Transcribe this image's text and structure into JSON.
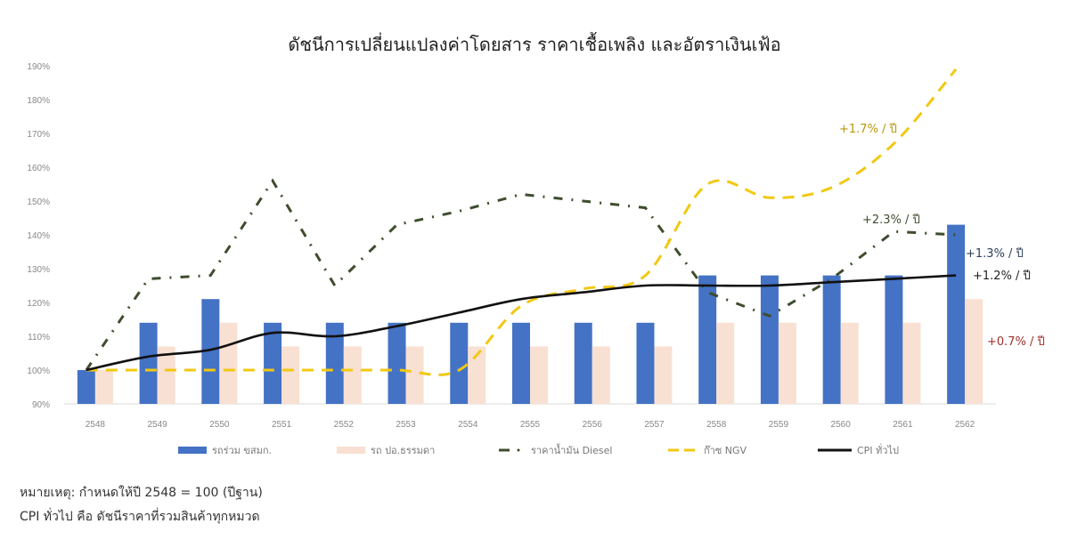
{
  "title": "ดัชนีการเปลี่ยนแปลงค่าโดยสาร ราคาเชื้อเพลิง และอัตราเงินเฟ้อ",
  "notes": {
    "line1": "หมายเหตุ: กำหนดให้ปี 2548 = 100 (ปีฐาน)",
    "line2": "CPI ทั่วไป คือ ดัชนีราคาที่รวมสินค้าทุกหมวด"
  },
  "legend": {
    "bus_bmta": "รถร่วม ขสมก.",
    "bus_regular": "รถ ปอ.ธรรมดา",
    "diesel": "ราคาน้ำมัน Diesel",
    "ngv": "ก๊าซ NGV",
    "cpi": "CPI ทั่วไป"
  },
  "annotations": {
    "ngv": "+1.7% / ปี",
    "diesel": "+2.3% / ปี",
    "bus_bmta": "+1.3% / ปี",
    "cpi": "+1.2% / ปี",
    "bus_regular": "+0.7% / ปี"
  },
  "colors": {
    "bus_bmta": "#4472C4",
    "bus_regular": "#F8E0D2",
    "diesel": "#3E4D2E",
    "ngv": "#F2C811",
    "cpi": "#111111",
    "annotation_red": "#A0302A",
    "annotation_ngv": "#B8960C",
    "axis_text": "#888888"
  },
  "chart_data": {
    "type": "bar",
    "title": "ดัชนีการเปลี่ยนแปลงค่าโดยสาร ราคาเชื้อเพลิง และอัตราเงินเฟ้อ",
    "xlabel": "",
    "ylabel": "",
    "ylim": [
      90,
      190
    ],
    "yticks": [
      "90%",
      "100%",
      "110%",
      "120%",
      "130%",
      "140%",
      "150%",
      "160%",
      "170%",
      "180%",
      "190%"
    ],
    "grid": false,
    "legend_position": "bottom",
    "categories": [
      "2548",
      "2549",
      "2550",
      "2551",
      "2552",
      "2553",
      "2554",
      "2555",
      "2556",
      "2557",
      "2558",
      "2559",
      "2560",
      "2561",
      "2562"
    ],
    "series": [
      {
        "name": "รถร่วม ขสมก.",
        "type": "bar",
        "values": [
          100,
          114,
          121,
          114,
          114,
          114,
          114,
          114,
          114,
          114,
          128,
          128,
          128,
          128,
          143
        ]
      },
      {
        "name": "รถ ปอ.ธรรมดา",
        "type": "bar",
        "values": [
          100,
          107,
          114,
          107,
          107,
          107,
          107,
          107,
          107,
          107,
          114,
          114,
          114,
          114,
          121
        ]
      },
      {
        "name": "ราคาน้ำมัน Diesel",
        "type": "line",
        "style": "dash-dot",
        "values": [
          100,
          127,
          128,
          156,
          125,
          143,
          147,
          152,
          150,
          148,
          123,
          116,
          127,
          141,
          140
        ]
      },
      {
        "name": "ก๊าซ NGV",
        "type": "line",
        "style": "dashed",
        "values": [
          100,
          100,
          100,
          100,
          100,
          100,
          100,
          119,
          124,
          128,
          155,
          151,
          154,
          167,
          189
        ]
      },
      {
        "name": "CPI ทั่วไป",
        "type": "line",
        "style": "solid",
        "values": [
          100,
          104,
          106,
          111,
          110,
          113,
          117,
          121,
          123,
          125,
          125,
          125,
          126,
          127,
          128
        ]
      }
    ],
    "annotations": [
      {
        "text": "+1.7% / ปี",
        "series": "ก๊าซ NGV"
      },
      {
        "text": "+2.3% / ปี",
        "series": "ราคาน้ำมัน Diesel"
      },
      {
        "text": "+1.3% / ปี",
        "series": "รถร่วม ขสมก."
      },
      {
        "text": "+1.2% / ปี",
        "series": "CPI ทั่วไป"
      },
      {
        "text": "+0.7% / ปี",
        "series": "รถ ปอ.ธรรมดา"
      }
    ]
  }
}
